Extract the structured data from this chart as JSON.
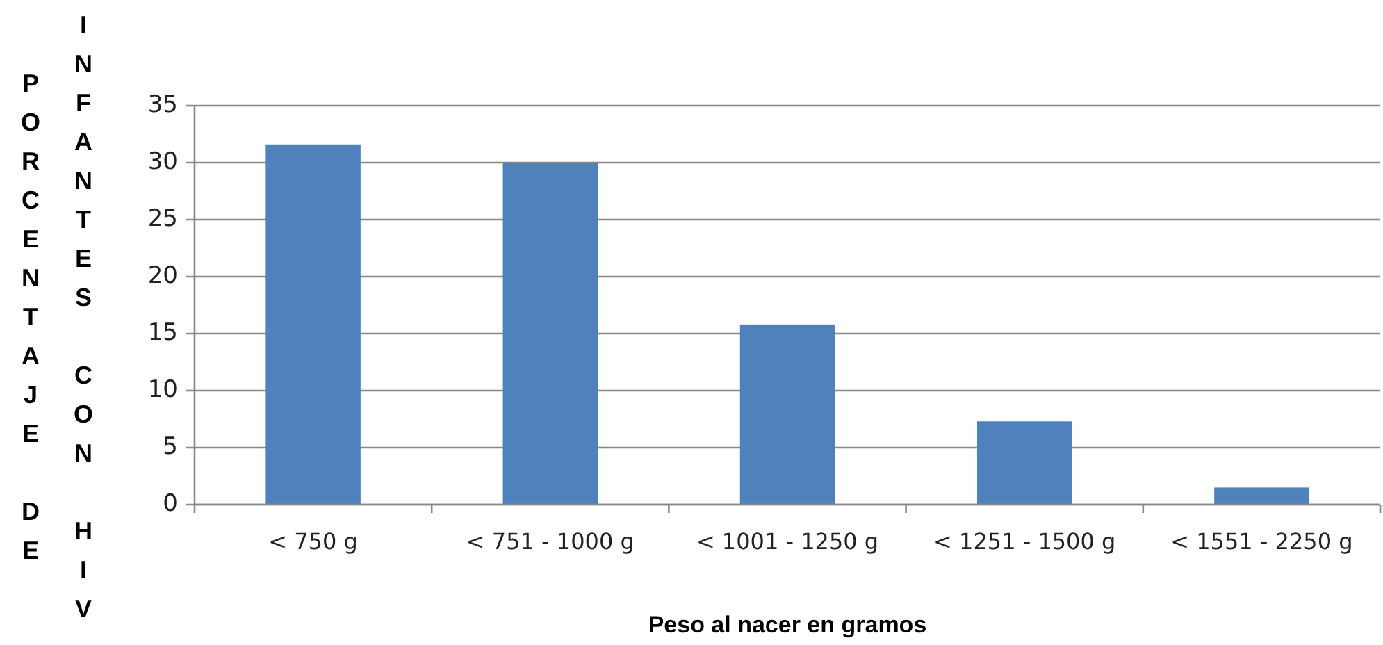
{
  "chart_data": {
    "type": "bar",
    "categories": [
      "< 750 g",
      "< 751 - 1000 g",
      "< 1001 - 1250 g",
      "< 1251 - 1500 g",
      "< 1551 - 2250 g"
    ],
    "values": [
      31.6,
      30,
      15.8,
      7.3,
      1.5
    ],
    "color": "#4f81bd",
    "ylim": [
      0,
      35
    ],
    "yticks": [
      0,
      5,
      10,
      15,
      20,
      25,
      30,
      35
    ],
    "grid": "y",
    "xlabel": "Peso al nacer en gramos",
    "ylabel": "PORCENTAJE DE INFANTES CON HIV"
  }
}
